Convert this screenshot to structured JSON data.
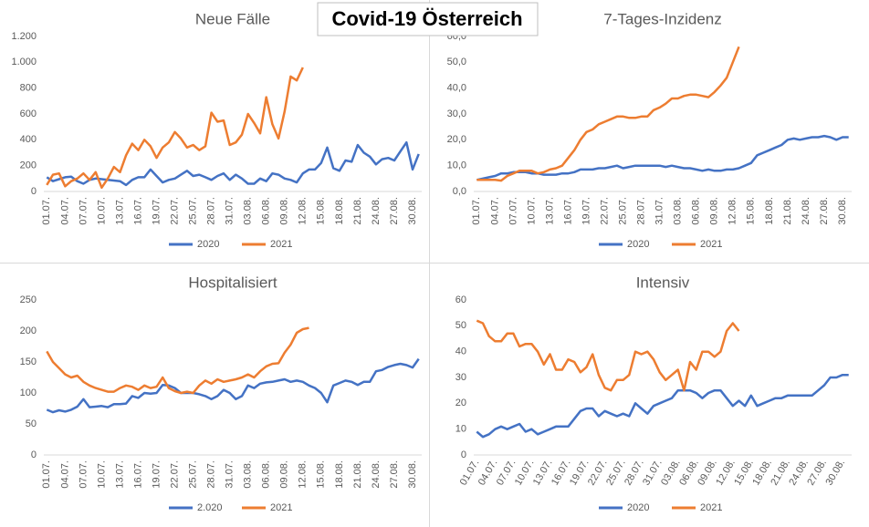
{
  "title": "Covid-19 Österreich",
  "chart_data": [
    {
      "type": "line",
      "title": "Neue Fälle",
      "categories": [
        "01.07.",
        null,
        null,
        "04.07.",
        null,
        null,
        "07.07.",
        null,
        null,
        "10.07.",
        null,
        null,
        "13.07.",
        null,
        null,
        "16.07.",
        null,
        null,
        "19.07.",
        null,
        null,
        "22.07.",
        null,
        null,
        "25.07.",
        null,
        null,
        "28.07.",
        null,
        null,
        "31.07.",
        null,
        null,
        "03.08.",
        null,
        null,
        "06.08.",
        null,
        null,
        "09.08.",
        null,
        null,
        "12.08.",
        null,
        null,
        "15.08.",
        null,
        null,
        "18.08.",
        null,
        null,
        "21.08.",
        null,
        null,
        "24.08.",
        null,
        null,
        "27.08.",
        null,
        null,
        "30.08.",
        null
      ],
      "ylim": [
        0,
        1200
      ],
      "yticks": [
        0,
        200,
        400,
        600,
        800,
        {
          "value": 1000,
          "label": "1.000"
        },
        {
          "value": 1200,
          "label": "1.200"
        }
      ],
      "grid": false,
      "legend": "bottom",
      "series": [
        {
          "name": "2020",
          "color": "#4472c4",
          "values": [
            110,
            80,
            95,
            110,
            115,
            80,
            60,
            90,
            100,
            95,
            90,
            85,
            80,
            50,
            90,
            110,
            110,
            170,
            120,
            70,
            90,
            100,
            130,
            160,
            120,
            130,
            110,
            90,
            120,
            140,
            90,
            130,
            100,
            60,
            60,
            100,
            80,
            140,
            130,
            100,
            90,
            70,
            140,
            170,
            170,
            220,
            340,
            180,
            160,
            240,
            230,
            360,
            300,
            270,
            210,
            250,
            260,
            240,
            310,
            380,
            170,
            290
          ]
        },
        {
          "name": "2021",
          "color": "#ed7d31",
          "values": [
            50,
            130,
            140,
            40,
            80,
            100,
            140,
            90,
            150,
            30,
            100,
            190,
            150,
            280,
            370,
            320,
            400,
            350,
            260,
            340,
            380,
            460,
            410,
            340,
            360,
            320,
            350,
            610,
            540,
            550,
            360,
            380,
            440,
            600,
            530,
            450,
            730,
            520,
            410,
            620,
            890,
            860,
            960,
            null,
            null,
            null,
            null,
            null,
            null,
            null,
            null,
            null,
            null,
            null,
            null,
            null,
            null,
            null,
            null,
            null,
            null,
            null
          ]
        }
      ]
    },
    {
      "type": "line",
      "title": "7-Tages-Inzidenz",
      "categories": [
        "01.07.",
        null,
        null,
        "04.07.",
        null,
        null,
        "07.07.",
        null,
        null,
        "10.07.",
        null,
        null,
        "13.07.",
        null,
        null,
        "16.07.",
        null,
        null,
        "19.07.",
        null,
        null,
        "22.07.",
        null,
        null,
        "25.07.",
        null,
        null,
        "28.07.",
        null,
        null,
        "31.07.",
        null,
        null,
        "03.08.",
        null,
        null,
        "06.08.",
        null,
        null,
        "09.08.",
        null,
        null,
        "12.08.",
        null,
        null,
        "15.08.",
        null,
        null,
        "18.08.",
        null,
        null,
        "21.08.",
        null,
        null,
        "24.08.",
        null,
        null,
        "27.08.",
        null,
        null,
        "30.08.",
        null
      ],
      "ylim": [
        0,
        60
      ],
      "yticks": [
        {
          "value": 0,
          "label": "0,0"
        },
        {
          "value": 10,
          "label": "10,0"
        },
        {
          "value": 20,
          "label": "20,0"
        },
        {
          "value": 30,
          "label": "30,0"
        },
        {
          "value": 40,
          "label": "40,0"
        },
        {
          "value": 50,
          "label": "50,0"
        },
        {
          "value": 60,
          "label": "60,0"
        }
      ],
      "grid": false,
      "legend": "bottom",
      "series": [
        {
          "name": "2020",
          "color": "#4472c4",
          "values": [
            4.5,
            5,
            5.5,
            6,
            7,
            7,
            7.5,
            7.5,
            7.5,
            7,
            7,
            6.5,
            6.5,
            6.5,
            7,
            7,
            7.5,
            8.5,
            8.5,
            8.5,
            9,
            9,
            9.5,
            10,
            9,
            9.5,
            10,
            10,
            10,
            10,
            10,
            9.5,
            10,
            9.5,
            9,
            9,
            8.5,
            8,
            8.5,
            8,
            8,
            8.5,
            8.5,
            9,
            10,
            11,
            14,
            15,
            16,
            17,
            18,
            20,
            20.5,
            20,
            20.5,
            21,
            21,
            21.5,
            21,
            20,
            21,
            21
          ]
        },
        {
          "name": "2021",
          "color": "#ed7d31",
          "values": [
            4.5,
            4.5,
            4.5,
            4.5,
            4.2,
            6,
            7,
            8,
            8,
            8,
            7,
            7.5,
            8.5,
            9,
            10,
            13,
            16,
            20,
            23,
            24,
            26,
            27,
            28,
            29,
            29,
            28.5,
            28.5,
            29,
            29,
            31.5,
            32.5,
            34,
            36,
            36,
            37,
            37.5,
            37.5,
            37,
            36.5,
            38.5,
            41,
            44,
            50,
            56,
            null,
            null,
            null,
            null,
            null,
            null,
            null,
            null,
            null,
            null,
            null,
            null,
            null,
            null,
            null,
            null,
            null,
            null
          ]
        }
      ]
    },
    {
      "type": "line",
      "title": "Hospitalisiert",
      "categories": [
        "01.07.",
        null,
        null,
        "04.07.",
        null,
        null,
        "07.07.",
        null,
        null,
        "10.07.",
        null,
        null,
        "13.07.",
        null,
        null,
        "16.07.",
        null,
        null,
        "19.07.",
        null,
        null,
        "22.07.",
        null,
        null,
        "25.07.",
        null,
        null,
        "28.07.",
        null,
        null,
        "31.07.",
        null,
        null,
        "03.08.",
        null,
        null,
        "06.08.",
        null,
        null,
        "09.08.",
        null,
        null,
        "12.08.",
        null,
        null,
        "15.08.",
        null,
        null,
        "18.08.",
        null,
        null,
        "21.08.",
        null,
        null,
        "24.08.",
        null,
        null,
        "27.08.",
        null,
        null,
        "30.08.",
        null
      ],
      "ylim": [
        0,
        250
      ],
      "yticks": [
        0,
        50,
        100,
        150,
        200,
        250
      ],
      "grid": false,
      "legend": "bottom",
      "series": [
        {
          "name": "2.020",
          "color": "#4472c4",
          "values": [
            73,
            69,
            72,
            70,
            73,
            78,
            90,
            77,
            78,
            79,
            77,
            82,
            82,
            83,
            95,
            92,
            100,
            99,
            100,
            113,
            112,
            108,
            100,
            100,
            100,
            98,
            95,
            90,
            95,
            105,
            100,
            90,
            95,
            112,
            108,
            115,
            117,
            118,
            120,
            122,
            118,
            120,
            118,
            112,
            108,
            100,
            85,
            112,
            116,
            120,
            118,
            113,
            118,
            118,
            135,
            137,
            142,
            145,
            147,
            145,
            141,
            155
          ]
        },
        {
          "name": "2021",
          "color": "#ed7d31",
          "values": [
            167,
            150,
            140,
            130,
            125,
            128,
            118,
            112,
            108,
            105,
            102,
            102,
            108,
            112,
            110,
            105,
            112,
            108,
            110,
            125,
            108,
            103,
            100,
            102,
            100,
            112,
            120,
            115,
            122,
            118,
            120,
            122,
            125,
            130,
            125,
            135,
            143,
            147,
            148,
            165,
            178,
            197,
            203,
            205,
            null,
            null,
            null,
            null,
            null,
            null,
            null,
            null,
            null,
            null,
            null,
            null,
            null,
            null,
            null,
            null,
            null,
            null
          ]
        }
      ]
    },
    {
      "type": "line",
      "title": "Intensiv",
      "categories": [
        "01.07.",
        null,
        null,
        "04.07.",
        null,
        null,
        "07.07.",
        null,
        null,
        "10.07.",
        null,
        null,
        "13.07.",
        null,
        null,
        "16.07.",
        null,
        null,
        "19.07.",
        null,
        null,
        "22.07.",
        null,
        null,
        "25.07.",
        null,
        null,
        "28.07.",
        null,
        null,
        "31.07.",
        null,
        null,
        "03.08.",
        null,
        null,
        "06.08.",
        null,
        null,
        "09.08.",
        null,
        null,
        "12.08.",
        null,
        null,
        "15.08.",
        null,
        null,
        "18.08.",
        null,
        null,
        "21.08.",
        null,
        null,
        "24.08.",
        null,
        null,
        "27.08.",
        null,
        null,
        "30.08.",
        null
      ],
      "ylim": [
        0,
        60
      ],
      "yticks": [
        0,
        10,
        20,
        30,
        40,
        50,
        60
      ],
      "grid": false,
      "legend": "bottom",
      "series": [
        {
          "name": "2020",
          "color": "#4472c4",
          "values": [
            9,
            7,
            8,
            10,
            11,
            10,
            11,
            12,
            9,
            10,
            8,
            9,
            10,
            11,
            11,
            11,
            14,
            17,
            18,
            18,
            15,
            17,
            16,
            15,
            16,
            15,
            20,
            18,
            16,
            19,
            20,
            21,
            22,
            25,
            25,
            25,
            24,
            22,
            24,
            25,
            25,
            22,
            19,
            21,
            19,
            23,
            19,
            20,
            21,
            22,
            22,
            23,
            23,
            23,
            23,
            23,
            25,
            27,
            30,
            30,
            31,
            31
          ]
        },
        {
          "name": "2021",
          "color": "#ed7d31",
          "values": [
            52,
            51,
            46,
            44,
            44,
            47,
            47,
            42,
            43,
            43,
            40,
            35,
            39,
            33,
            33,
            37,
            36,
            32,
            34,
            39,
            31,
            26,
            25,
            29,
            29,
            31,
            40,
            39,
            40,
            37,
            32,
            29,
            31,
            33,
            25,
            36,
            33,
            40,
            40,
            38,
            40,
            48,
            51,
            48,
            null,
            null,
            null,
            null,
            null,
            null,
            null,
            null,
            null,
            null,
            null,
            null,
            null,
            null,
            null,
            null,
            null,
            null
          ]
        }
      ]
    }
  ]
}
